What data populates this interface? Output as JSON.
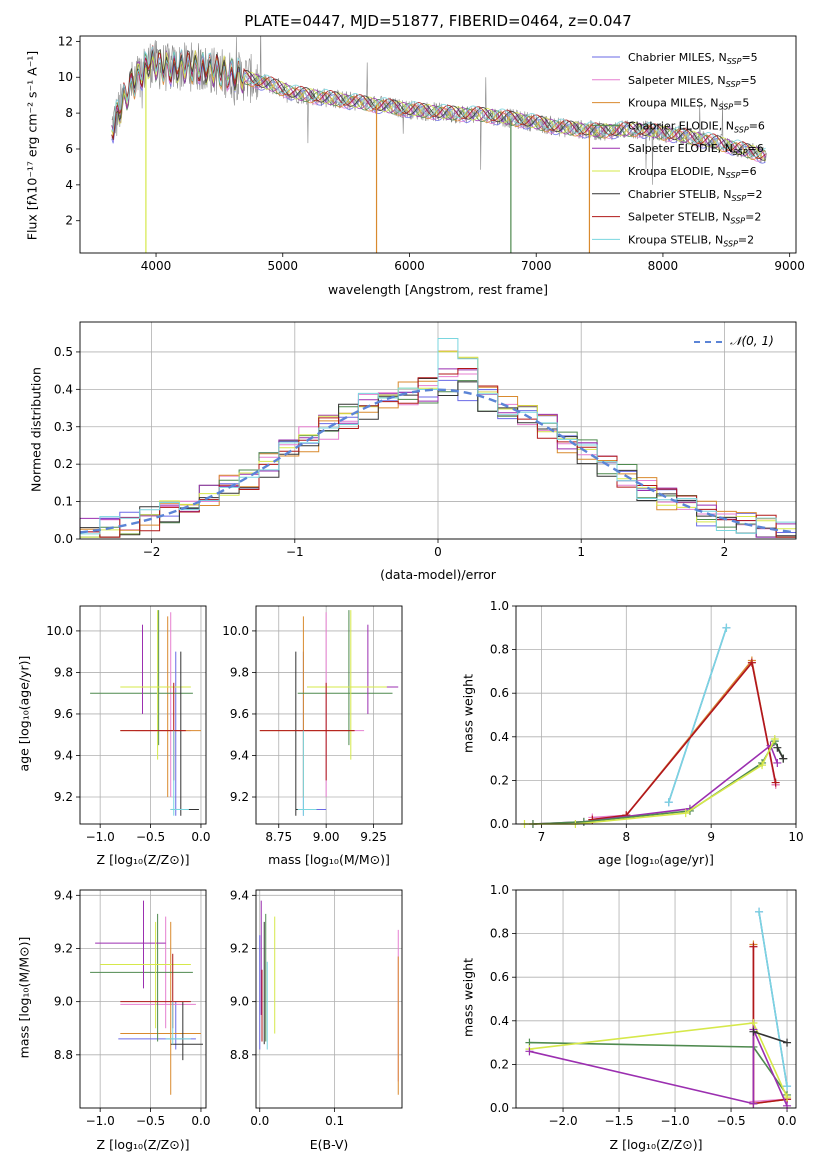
{
  "figure_title": "PLATE=0447, MJD=51877, FIBERID=0464, z=0.047",
  "models": [
    {
      "name": "Chabrier MILES",
      "nssp": "5",
      "color": "#6a6ae6"
    },
    {
      "name": "Salpeter MILES",
      "nssp": "5",
      "color": "#e67fd0"
    },
    {
      "name": "Kroupa MILES",
      "nssp": "5",
      "color": "#d98a2e"
    },
    {
      "name": "Chabrier ELODIE",
      "nssp": "6",
      "color": "#4f8a4f"
    },
    {
      "name": "Salpeter ELODIE",
      "nssp": "6",
      "color": "#9b2fb0"
    },
    {
      "name": "Kroupa ELODIE",
      "nssp": "6",
      "color": "#d6e84a"
    },
    {
      "name": "Chabrier STELIB",
      "nssp": "2",
      "color": "#333333"
    },
    {
      "name": "Salpeter STELIB",
      "nssp": "2",
      "color": "#b01818"
    },
    {
      "name": "Kroupa STELIB",
      "nssp": "2",
      "color": "#7ad6df"
    }
  ],
  "chart_data": [
    {
      "id": "spectrum",
      "type": "line",
      "xlabel": "wavelength [Angstrom, rest frame]",
      "ylabel": "Flux [fλ10⁻¹⁷ erg cm⁻² s⁻¹ A⁻¹]",
      "xlim": [
        3400,
        9050
      ],
      "ylim": [
        0.2,
        12.3
      ],
      "xticks": [
        4000,
        5000,
        6000,
        7000,
        8000,
        9000
      ],
      "yticks": [
        2,
        4,
        6,
        8,
        10,
        12
      ],
      "legend_loc": "right",
      "data_color": "#888888",
      "continuum": [
        [
          3650,
          7.2
        ],
        [
          3800,
          9.5
        ],
        [
          3950,
          10.8
        ],
        [
          4100,
          10.5
        ],
        [
          4300,
          10.6
        ],
        [
          4500,
          10.3
        ],
        [
          4700,
          10.0
        ],
        [
          4900,
          9.6
        ],
        [
          5100,
          9.1
        ],
        [
          5400,
          8.8
        ],
        [
          5700,
          8.5
        ],
        [
          6000,
          8.2
        ],
        [
          6300,
          8.0
        ],
        [
          6600,
          7.9
        ],
        [
          6900,
          7.6
        ],
        [
          7200,
          7.2
        ],
        [
          7500,
          7.0
        ],
        [
          7800,
          7.1
        ],
        [
          8100,
          6.8
        ],
        [
          8400,
          6.4
        ],
        [
          8820,
          5.6
        ]
      ]
    },
    {
      "id": "residuals",
      "type": "step",
      "xlabel": "(data-model)/error",
      "ylabel": "Normed distribution",
      "xlim": [
        -2.5,
        2.5
      ],
      "ylim": [
        0,
        0.58
      ],
      "xticks": [
        -2,
        -1,
        0,
        1,
        2
      ],
      "yticks": [
        0.0,
        0.1,
        0.2,
        0.3,
        0.4,
        0.5
      ],
      "legend": "𝒩(0, 1)",
      "legend_loc": "upper right",
      "bins": [
        -2.5,
        2.5
      ],
      "nbins": 36
    },
    {
      "id": "age_vs_z",
      "type": "errorbar",
      "xlabel": "Z [log₁₀(Z/Z⊙)]",
      "ylabel": "age  [log₁₀(age/yr)]",
      "xlim": [
        -1.2,
        0.05
      ],
      "ylim": [
        9.07,
        10.12
      ],
      "xticks": [
        -1.0,
        -0.5,
        0.0
      ],
      "yticks": [
        9.2,
        9.4,
        9.6,
        9.8,
        10.0
      ],
      "points": [
        {
          "m": 0,
          "x": -0.25,
          "y": 9.14,
          "ex": [
            -0.3,
            -0.18
          ],
          "ey": [
            9.11,
            9.9
          ]
        },
        {
          "m": 1,
          "x": -0.3,
          "y": 9.52,
          "ex": [
            -0.65,
            -0.1
          ],
          "ey": [
            9.2,
            10.09
          ]
        },
        {
          "m": 2,
          "x": -0.33,
          "y": 9.52,
          "ex": [
            -0.8,
            0.0
          ],
          "ey": [
            9.2,
            10.07
          ]
        },
        {
          "m": 3,
          "x": -0.42,
          "y": 9.7,
          "ex": [
            -1.1,
            -0.08
          ],
          "ey": [
            9.45,
            10.1
          ]
        },
        {
          "m": 4,
          "x": -0.58,
          "y": 9.73,
          "ex": [
            -0.75,
            -0.5
          ],
          "ey": [
            9.6,
            10.03
          ]
        },
        {
          "m": 5,
          "x": -0.43,
          "y": 9.73,
          "ex": [
            -0.8,
            -0.1
          ],
          "ey": [
            9.38,
            10.1
          ]
        },
        {
          "m": 6,
          "x": -0.2,
          "y": 9.14,
          "ex": [
            -0.3,
            -0.02
          ],
          "ey": [
            9.11,
            9.9
          ]
        },
        {
          "m": 7,
          "x": -0.27,
          "y": 9.52,
          "ex": [
            -0.8,
            -0.15
          ],
          "ey": [
            9.28,
            9.75
          ]
        },
        {
          "m": 8,
          "x": -0.27,
          "y": 9.14,
          "ex": [
            -0.3,
            -0.12
          ],
          "ey": [
            9.11,
            9.52
          ]
        }
      ]
    },
    {
      "id": "age_vs_mass",
      "type": "errorbar",
      "xlabel": "mass [log₁₀(M/M⊙)]",
      "ylabel": "",
      "xlim": [
        8.63,
        9.4
      ],
      "ylim": [
        9.07,
        10.12
      ],
      "xticks": [
        8.75,
        9.0,
        9.25
      ],
      "yticks": [
        9.2,
        9.4,
        9.6,
        9.8,
        10.0
      ],
      "points": [
        {
          "m": 0,
          "x": 8.88,
          "y": 9.14,
          "ex": [
            8.85,
            9.0
          ],
          "ey": [
            9.11,
            9.9
          ]
        },
        {
          "m": 1,
          "x": 9.0,
          "y": 9.52,
          "ex": [
            8.85,
            9.2
          ],
          "ey": [
            9.2,
            10.09
          ]
        },
        {
          "m": 2,
          "x": 8.88,
          "y": 9.52,
          "ex": [
            8.65,
            9.15
          ],
          "ey": [
            9.2,
            10.07
          ]
        },
        {
          "m": 3,
          "x": 9.12,
          "y": 9.7,
          "ex": [
            8.85,
            9.35
          ],
          "ey": [
            9.45,
            10.1
          ]
        },
        {
          "m": 4,
          "x": 9.22,
          "y": 9.73,
          "ex": [
            8.9,
            9.38
          ],
          "ey": [
            9.6,
            10.03
          ]
        },
        {
          "m": 5,
          "x": 9.13,
          "y": 9.73,
          "ex": [
            8.9,
            9.32
          ],
          "ey": [
            9.38,
            10.1
          ]
        },
        {
          "m": 6,
          "x": 8.84,
          "y": 9.14,
          "ex": [
            8.84,
            8.95
          ],
          "ey": [
            9.11,
            9.9
          ]
        },
        {
          "m": 7,
          "x": 9.0,
          "y": 9.52,
          "ex": [
            8.65,
            9.15
          ],
          "ey": [
            9.28,
            9.75
          ]
        },
        {
          "m": 8,
          "x": 8.88,
          "y": 9.14,
          "ex": [
            8.85,
            8.95
          ],
          "ey": [
            9.11,
            9.52
          ]
        }
      ]
    },
    {
      "id": "weight_vs_age",
      "type": "line",
      "xlabel": "age  [log₁₀(age/yr)]",
      "ylabel": "mass weight",
      "xlim": [
        6.7,
        10.0
      ],
      "ylim": [
        0.0,
        1.0
      ],
      "xticks": [
        7,
        8,
        9,
        10
      ],
      "yticks": [
        0.0,
        0.2,
        0.4,
        0.6,
        0.8,
        1.0
      ],
      "series": [
        {
          "m": 0,
          "x": [
            8.5,
            9.18
          ],
          "y": [
            0.1,
            0.9
          ]
        },
        {
          "m": 8,
          "x": [
            8.5,
            9.18
          ],
          "y": [
            0.1,
            0.9
          ]
        },
        {
          "m": 2,
          "x": [
            7.6,
            8.0,
            9.48,
            9.76
          ],
          "y": [
            0.02,
            0.04,
            0.75,
            0.18
          ]
        },
        {
          "m": 1,
          "x": [
            7.6,
            8.0,
            9.48,
            9.76
          ],
          "y": [
            0.03,
            0.04,
            0.74,
            0.18
          ]
        },
        {
          "m": 7,
          "x": [
            7.6,
            8.0,
            9.48,
            9.76
          ],
          "y": [
            0.02,
            0.04,
            0.74,
            0.19
          ]
        },
        {
          "m": 4,
          "x": [
            6.9,
            7.5,
            8.75,
            9.7,
            9.78
          ],
          "y": [
            0.0,
            0.01,
            0.07,
            0.36,
            0.28
          ]
        },
        {
          "m": 3,
          "x": [
            6.9,
            7.5,
            8.75,
            9.6,
            9.75,
            9.85
          ],
          "y": [
            0.0,
            0.01,
            0.06,
            0.28,
            0.38,
            0.3
          ]
        },
        {
          "m": 5,
          "x": [
            6.8,
            7.4,
            8.7,
            9.6,
            9.75
          ],
          "y": [
            0.0,
            0.0,
            0.05,
            0.27,
            0.39
          ]
        },
        {
          "m": 6,
          "x": [
            9.78,
            9.85
          ],
          "y": [
            0.35,
            0.3
          ]
        }
      ]
    },
    {
      "id": "mass_vs_z",
      "type": "errorbar",
      "xlabel": "Z [log₁₀(Z/Z⊙)]",
      "ylabel": "mass [log₁₀(M/M⊙)]",
      "xlim": [
        -1.2,
        0.05
      ],
      "ylim": [
        8.6,
        9.42
      ],
      "xticks": [
        -1.0,
        -0.5,
        0.0
      ],
      "yticks": [
        8.8,
        9.0,
        9.2,
        9.4
      ],
      "points": [
        {
          "m": 0,
          "x": -0.25,
          "y": 8.86,
          "ex": [
            -0.82,
            -0.05
          ],
          "ey": [
            8.82,
            9.0
          ]
        },
        {
          "m": 1,
          "x": -0.35,
          "y": 8.99,
          "ex": [
            -0.8,
            -0.05
          ],
          "ey": [
            8.9,
            9.32
          ]
        },
        {
          "m": 2,
          "x": -0.3,
          "y": 8.88,
          "ex": [
            -0.8,
            0.0
          ],
          "ey": [
            8.65,
            9.3
          ]
        },
        {
          "m": 3,
          "x": -0.43,
          "y": 9.11,
          "ex": [
            -1.1,
            -0.08
          ],
          "ey": [
            8.85,
            9.33
          ]
        },
        {
          "m": 4,
          "x": -0.57,
          "y": 9.22,
          "ex": [
            -1.05,
            -0.35
          ],
          "ey": [
            9.05,
            9.38
          ]
        },
        {
          "m": 5,
          "x": -0.45,
          "y": 9.14,
          "ex": [
            -1.0,
            -0.1
          ],
          "ey": [
            8.9,
            9.3
          ]
        },
        {
          "m": 6,
          "x": -0.18,
          "y": 8.84,
          "ex": [
            -0.3,
            0.02
          ],
          "ey": [
            8.78,
            9.0
          ]
        },
        {
          "m": 7,
          "x": -0.28,
          "y": 9.0,
          "ex": [
            -0.8,
            -0.1
          ],
          "ey": [
            8.9,
            9.18
          ]
        },
        {
          "m": 8,
          "x": -0.28,
          "y": 8.86,
          "ex": [
            -0.35,
            -0.1
          ],
          "ey": [
            8.84,
            9.0
          ]
        }
      ]
    },
    {
      "id": "mass_vs_ebv",
      "type": "errorbar",
      "xlabel": "E(B-V)",
      "ylabel": "",
      "xlim": [
        -0.005,
        0.19
      ],
      "ylim": [
        8.6,
        9.42
      ],
      "xticks": [
        0.0,
        0.1
      ],
      "yticks": [
        8.8,
        9.0,
        9.2,
        9.4
      ],
      "points": [
        {
          "m": 0,
          "x": 0.0,
          "y": 8.86,
          "ey": [
            8.82,
            9.25
          ]
        },
        {
          "m": 1,
          "x": 0.185,
          "y": 9.0,
          "ey": [
            8.7,
            9.27
          ]
        },
        {
          "m": 2,
          "x": 0.185,
          "y": 8.9,
          "ey": [
            8.65,
            9.17
          ]
        },
        {
          "m": 3,
          "x": 0.008,
          "y": 9.11,
          "ey": [
            8.85,
            9.33
          ]
        },
        {
          "m": 4,
          "x": 0.002,
          "y": 9.2,
          "ey": [
            8.95,
            9.38
          ]
        },
        {
          "m": 5,
          "x": 0.02,
          "y": 9.1,
          "ey": [
            8.88,
            9.32
          ]
        },
        {
          "m": 6,
          "x": 0.006,
          "y": 9.05,
          "ey": [
            8.84,
            9.3
          ]
        },
        {
          "m": 7,
          "x": 0.003,
          "y": 9.0,
          "ey": [
            8.85,
            9.12
          ]
        },
        {
          "m": 8,
          "x": 0.01,
          "y": 8.9,
          "ey": [
            8.82,
            9.15
          ]
        }
      ]
    },
    {
      "id": "weight_vs_z",
      "type": "line",
      "xlabel": "Z [log₁₀(Z/Z⊙)]",
      "ylabel": "mass weight",
      "xlim": [
        -2.42,
        0.08
      ],
      "ylim": [
        0.0,
        1.0
      ],
      "xticks": [
        -2.0,
        -1.5,
        -1.0,
        -0.5,
        0.0
      ],
      "yticks": [
        0.0,
        0.2,
        0.4,
        0.6,
        0.8,
        1.0
      ],
      "series": [
        {
          "m": 0,
          "x": [
            -0.25,
            0.0
          ],
          "y": [
            0.9,
            0.1
          ]
        },
        {
          "m": 8,
          "x": [
            -0.25,
            0.0
          ],
          "y": [
            0.9,
            0.1
          ]
        },
        {
          "m": 2,
          "x": [
            -0.3,
            -0.3,
            0.0
          ],
          "y": [
            0.75,
            0.02,
            0.04
          ]
        },
        {
          "m": 1,
          "x": [
            -0.3,
            -0.3,
            0.0
          ],
          "y": [
            0.74,
            0.03,
            0.04
          ]
        },
        {
          "m": 7,
          "x": [
            -0.3,
            -0.3,
            0.0
          ],
          "y": [
            0.74,
            0.02,
            0.04
          ]
        },
        {
          "m": 3,
          "x": [
            -2.3,
            -0.3,
            0.0
          ],
          "y": [
            0.3,
            0.28,
            0.06
          ]
        },
        {
          "m": 5,
          "x": [
            -2.3,
            -0.3,
            0.0
          ],
          "y": [
            0.27,
            0.39,
            0.05
          ]
        },
        {
          "m": 4,
          "x": [
            -2.3,
            -0.3,
            -0.3,
            0.0
          ],
          "y": [
            0.26,
            0.02,
            0.36,
            0.01
          ]
        },
        {
          "m": 6,
          "x": [
            -0.3,
            0.0
          ],
          "y": [
            0.35,
            0.3
          ]
        }
      ]
    }
  ]
}
